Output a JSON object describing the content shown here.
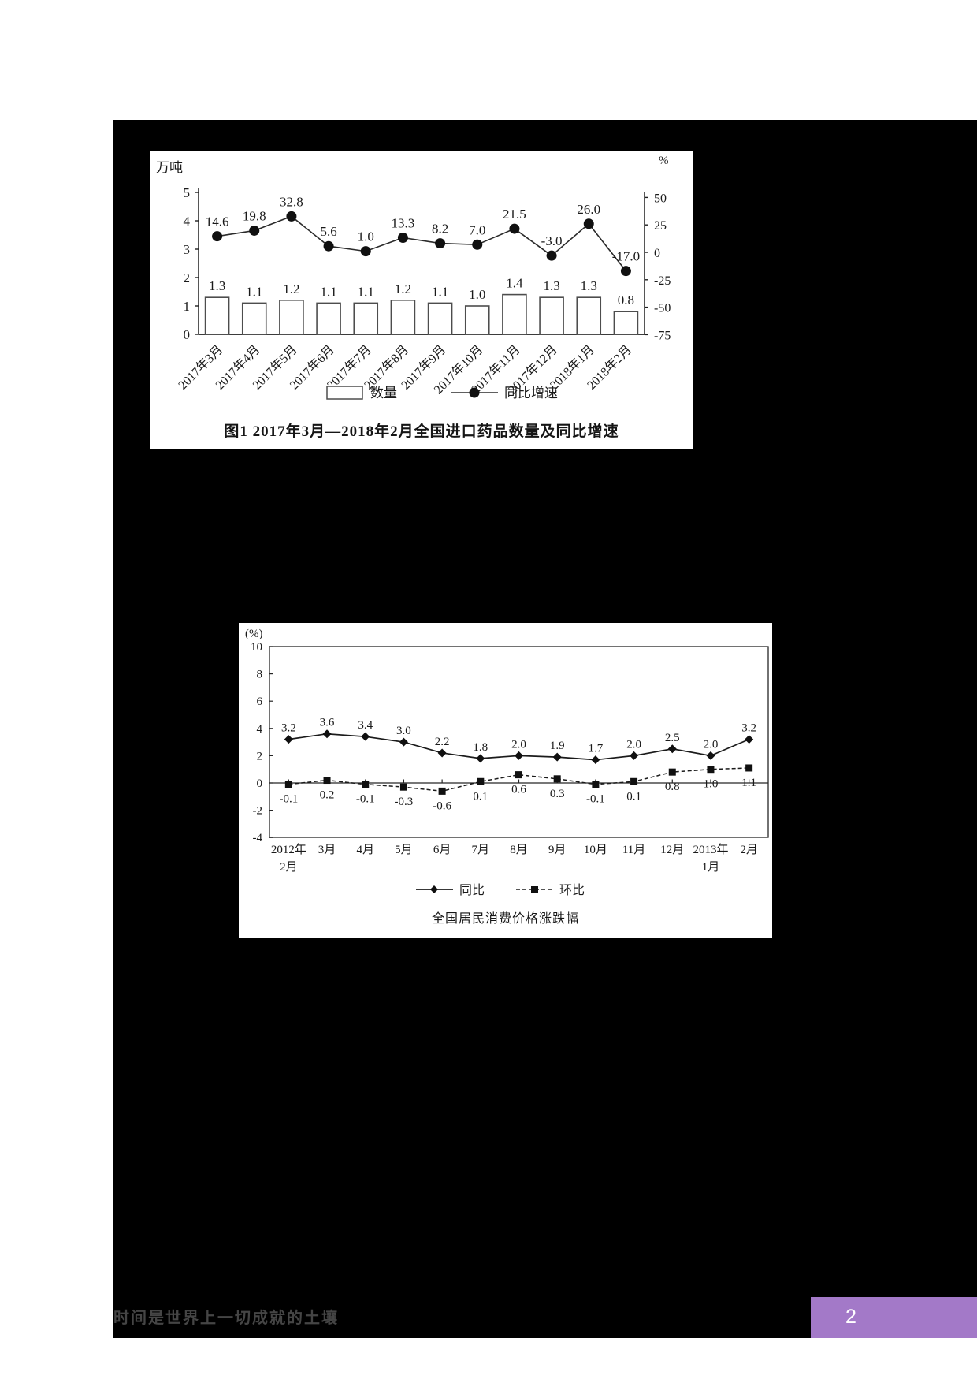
{
  "page": {
    "footer_quote": "时间是世界上一切成就的土壤",
    "page_number": "2",
    "colors": {
      "page_background": "#ffffff",
      "content_background": "#000000",
      "badge": "#a379c8",
      "ink": "#1a1a1a"
    }
  },
  "chart_data": [
    {
      "type": "bar+line",
      "title": "图1  2017年3月—2018年2月全国进口药品数量及同比增速",
      "left_axis_unit": "万吨",
      "right_axis_unit": "%",
      "left_ticks": [
        "5",
        "4",
        "3",
        "2",
        "1",
        "0"
      ],
      "right_ticks": [
        "50",
        "25",
        "0",
        "-25",
        "-50",
        "-75"
      ],
      "left_range": [
        0,
        5
      ],
      "right_range": [
        -75,
        50
      ],
      "grid": "off",
      "legend_position": "bottom",
      "categories": [
        "2017年3月",
        "2017年4月",
        "2017年5月",
        "2017年6月",
        "2017年7月",
        "2017年8月",
        "2017年9月",
        "2017年10月",
        "2017年11月",
        "2017年12月",
        "2018年1月",
        "2018年2月"
      ],
      "series": [
        {
          "name": "数量",
          "type": "bar",
          "axis": "left",
          "values": [
            "1.3",
            "1.1",
            "1.2",
            "1.1",
            "1.1",
            "1.2",
            "1.1",
            "1.0",
            "1.4",
            "1.3",
            "1.3",
            "0.8"
          ]
        },
        {
          "name": "同比增速",
          "type": "line",
          "axis": "right",
          "values": [
            "14.6",
            "19.8",
            "32.8",
            "5.6",
            "1.0",
            "13.3",
            "8.2",
            "7.0",
            "21.5",
            "-3.0",
            "26.0",
            "-17.0"
          ]
        }
      ]
    },
    {
      "type": "line",
      "title": "全国居民消费价格涨跌幅",
      "y_axis_unit": "(%)",
      "y_ticks": [
        "10",
        "8",
        "6",
        "4",
        "2",
        "0",
        "-2",
        "-4"
      ],
      "ylim": [
        -4,
        10
      ],
      "grid": "off",
      "legend_position": "bottom",
      "categories": [
        "2012年|2月",
        "3月",
        "4月",
        "5月",
        "6月",
        "7月",
        "8月",
        "9月",
        "10月",
        "11月",
        "12月",
        "2013年|1月",
        "2月"
      ],
      "series": [
        {
          "name": "同比",
          "type": "line-solid-diamond",
          "values": [
            "3.2",
            "3.6",
            "3.4",
            "3.0",
            "2.2",
            "1.8",
            "2.0",
            "1.9",
            "1.7",
            "2.0",
            "2.5",
            "2.0",
            "3.2"
          ]
        },
        {
          "name": "环比",
          "type": "line-dashed-square",
          "values": [
            "-0.1",
            "0.2",
            "-0.1",
            "-0.3",
            "-0.6",
            "0.1",
            "0.6",
            "0.3",
            "-0.1",
            "0.1",
            "0.8",
            "1.0",
            "1.1"
          ]
        }
      ]
    }
  ]
}
